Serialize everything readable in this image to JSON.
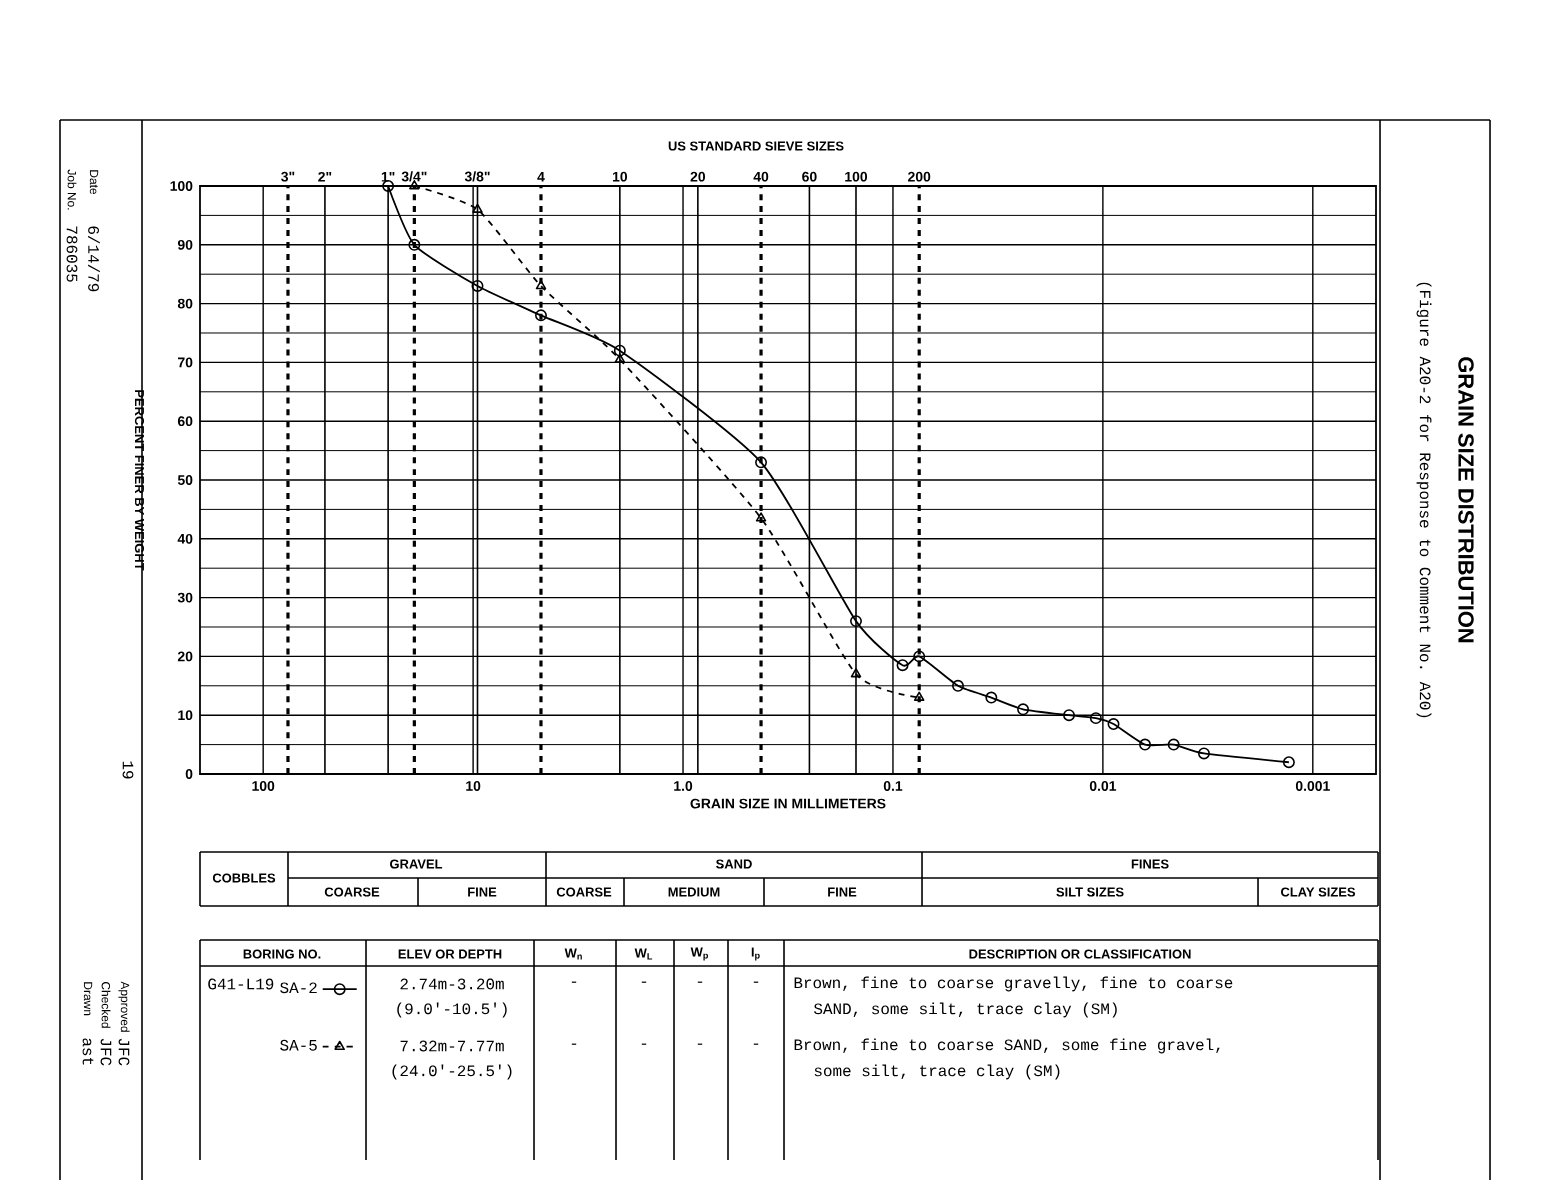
{
  "chart_data": {
    "type": "line",
    "title": "GRAIN SIZE DISTRIBUTION",
    "subtitle": "(Figure A20-2 for Response to Comment No. A20)",
    "xlabel": "GRAIN SIZE IN MILLIMETERS",
    "ylabel": "PERCENT FINER BY WEIGHT",
    "log": "x",
    "grid": true,
    "legend": "bottom left",
    "xlim": [
      200,
      0.0005
    ],
    "xticks": [
      100,
      10,
      {
        "value": 1,
        "label": "1.0"
      },
      0.1,
      0.01,
      0.001
    ],
    "ylim": [
      0,
      100
    ],
    "yticks": [
      0,
      10,
      20,
      30,
      40,
      50,
      60,
      70,
      80,
      90,
      100
    ],
    "series": [
      {
        "name": "SA-2",
        "color": "#000000",
        "marker": "circle",
        "line_style": "solid",
        "x": [
          25.4,
          19.05,
          9.53,
          4.75,
          2.0,
          0.425,
          0.15,
          0.09,
          0.075,
          0.049,
          0.034,
          0.024,
          0.0145,
          0.0108,
          0.0089,
          0.0063,
          0.0046,
          0.0033,
          0.0013
        ],
        "values": [
          100,
          90,
          83,
          78,
          72,
          53,
          26,
          18.5,
          20,
          15,
          13,
          11,
          10,
          9.5,
          8.5,
          5,
          5,
          3.5,
          2
        ]
      },
      {
        "name": "SA-5",
        "color": "#000000",
        "marker": "triangle",
        "line_style": "dashed",
        "x": [
          19.05,
          9.53,
          4.75,
          2.0,
          0.425,
          0.15,
          0.075
        ],
        "values": [
          100,
          96,
          83,
          70.5,
          43.5,
          17,
          13
        ]
      }
    ],
    "ref_lines": [
      {
        "axis": "x",
        "value": 76.2,
        "line_style": "dashed"
      },
      {
        "axis": "x",
        "value": 50.8,
        "line_style": "solid"
      },
      {
        "axis": "x",
        "value": 25.4,
        "line_style": "solid"
      },
      {
        "axis": "x",
        "value": 19.05,
        "line_style": "dashed"
      },
      {
        "axis": "x",
        "value": 9.53,
        "line_style": "solid"
      },
      {
        "axis": "x",
        "value": 4.75,
        "line_style": "dashed"
      },
      {
        "axis": "x",
        "value": 2.0,
        "line_style": "solid"
      },
      {
        "axis": "x",
        "value": 0.85,
        "line_style": "solid"
      },
      {
        "axis": "x",
        "value": 0.425,
        "line_style": "dashed"
      },
      {
        "axis": "x",
        "value": 0.25,
        "line_style": "solid"
      },
      {
        "axis": "x",
        "value": 0.15,
        "line_style": "solid"
      },
      {
        "axis": "x",
        "value": 0.075,
        "line_style": "dashed"
      }
    ],
    "annotations": [
      "COBBLES",
      "GRAVEL",
      "COARSE",
      "FINE",
      "SAND",
      "COARSE",
      "MEDIUM",
      "FINE",
      "FINES",
      "SILT SIZES",
      "CLAY SIZES",
      "BORING NO.",
      "ELEV OR DEPTH",
      "W$_{n}$",
      "W$_{L}$",
      "W$_{p}$",
      "I$_{p}$",
      "DESCRIPTION OR CLASSIFICATION",
      "G41-L19",
      "2.74m-3.20m",
      "(9.0'-10.5')",
      "-",
      "-",
      "-",
      "-",
      "Brown, fine to coarse gravelly, fine to coarse",
      "SAND, some silt, trace clay (SM)",
      "7.32m-7.77m",
      "(24.0'-25.5')",
      "-",
      "-",
      "-",
      "-",
      "Brown, fine to coarse SAND, some fine gravel,",
      "some silt, trace clay (SM)",
      "Date",
      "6/14/79",
      "Job No.",
      "786035",
      "19",
      "Drawn",
      "ast",
      "Checked",
      "JFC",
      "Approved",
      "JFC",
      "US STANDARD SIEVE SIZES",
      "3\"",
      "2\"",
      "1\"",
      "3/4\"",
      "3/8\"",
      "4",
      "10",
      "20",
      "40",
      "60",
      "100",
      "200"
    ]
  }
}
